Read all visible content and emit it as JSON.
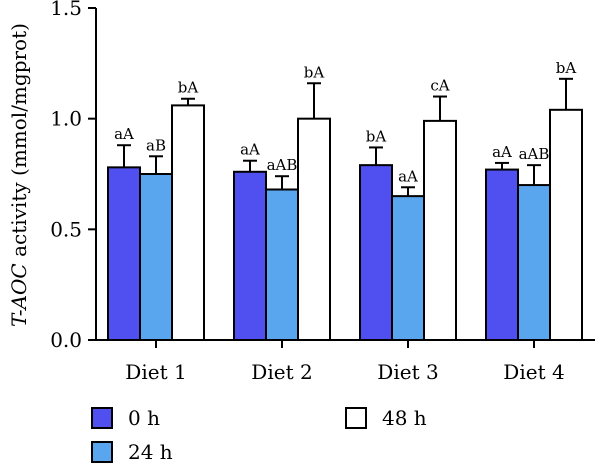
{
  "chart_data": {
    "type": "bar",
    "ylabel": {
      "italic": "T-AOC",
      "rest": " activity (mmol/mgprot)"
    },
    "ylim": [
      0,
      1.5
    ],
    "yticks": [
      "0.0",
      "0.5",
      "1.0",
      "1.5"
    ],
    "ytick_values": [
      0,
      0.5,
      1.0,
      1.5
    ],
    "categories": [
      "Diet 1",
      "Diet 2",
      "Diet 3",
      "Diet 4"
    ],
    "series": [
      {
        "name": "0 h",
        "color": "#5050f0",
        "values": [
          0.78,
          0.76,
          0.79,
          0.77
        ],
        "errors": [
          0.1,
          0.05,
          0.08,
          0.03
        ],
        "labels": [
          "aA",
          "aA",
          "bA",
          "aA"
        ]
      },
      {
        "name": "24 h",
        "color": "#5aa6ee",
        "values": [
          0.75,
          0.68,
          0.65,
          0.7
        ],
        "errors": [
          0.08,
          0.06,
          0.04,
          0.09
        ],
        "labels": [
          "aB",
          "aAB",
          "aA",
          "aAB"
        ]
      },
      {
        "name": "48 h",
        "color": "#ffffff",
        "values": [
          1.06,
          1.0,
          0.99,
          1.04
        ],
        "errors": [
          0.03,
          0.16,
          0.11,
          0.14
        ],
        "labels": [
          "bA",
          "bA",
          "cA",
          "bA"
        ]
      }
    ],
    "legend_position": "bottom",
    "grid": false
  }
}
